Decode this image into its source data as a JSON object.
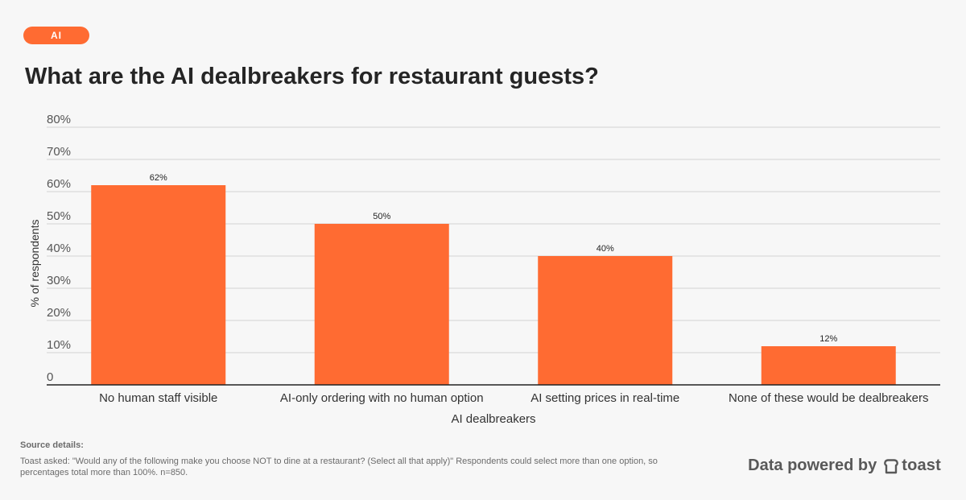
{
  "tag": {
    "label": "AI",
    "color": "#ff6b32"
  },
  "footer": {
    "source_title": "Source details:",
    "source_text": "Toast asked: \"Would any of the following make you choose NOT to dine at a restaurant? (Select all that apply)\" Respondents could select more than one option, so percentages total more than 100%. n=850.",
    "powered_by": "Data powered by",
    "brand_name": "toast",
    "brand_icon": "toast-logo-icon"
  },
  "chart_data": {
    "type": "bar",
    "title": "What are the AI dealbreakers for restaurant guests?",
    "categories": [
      "No human staff visible",
      "AI-only ordering with no human option",
      "AI setting prices in real-time",
      "None of these would be dealbreakers"
    ],
    "values": [
      62,
      50,
      40,
      12
    ],
    "data_labels": [
      "62%",
      "50%",
      "40%",
      "12%"
    ],
    "xlabel": "AI dealbreakers",
    "ylabel": "% of respondents",
    "ylim": [
      0,
      80
    ],
    "yticks": [
      0,
      10,
      20,
      30,
      40,
      50,
      60,
      70,
      80
    ],
    "ytick_labels": [
      "0",
      "10%",
      "20%",
      "30%",
      "40%",
      "50%",
      "60%",
      "70%",
      "80%"
    ],
    "grid": true,
    "legend": "none",
    "bar_color": "#ff6b32"
  }
}
